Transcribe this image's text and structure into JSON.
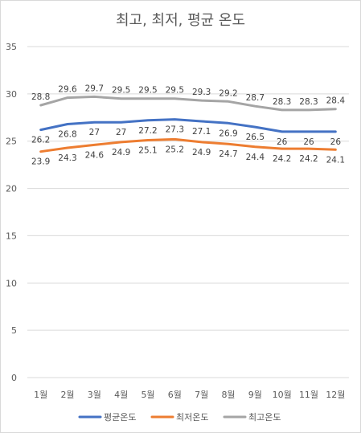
{
  "chart_data": {
    "type": "line",
    "title": "최고, 최저, 평균 온도",
    "categories": [
      "1월",
      "2월",
      "3월",
      "4월",
      "5월",
      "6월",
      "7월",
      "8월",
      "9월",
      "10월",
      "11월",
      "12월"
    ],
    "ylim": [
      0,
      35
    ],
    "yticks": [
      0,
      5,
      10,
      15,
      20,
      25,
      30,
      35
    ],
    "grid": true,
    "legend_position": "bottom",
    "series": [
      {
        "name": "평균온도",
        "color": "#4472c4",
        "label_placement": "below",
        "values": [
          26.2,
          26.8,
          27,
          27,
          27.2,
          27.3,
          27.1,
          26.9,
          26.5,
          26,
          26,
          26
        ]
      },
      {
        "name": "최저온도",
        "color": "#ed7d31",
        "label_placement": "below",
        "values": [
          23.9,
          24.3,
          24.6,
          24.9,
          25.1,
          25.2,
          24.9,
          24.7,
          24.4,
          24.2,
          24.2,
          24.1
        ]
      },
      {
        "name": "최고온도",
        "color": "#a5a5a5",
        "label_placement": "above",
        "values": [
          28.8,
          29.6,
          29.7,
          29.5,
          29.5,
          29.5,
          29.3,
          29.2,
          28.7,
          28.3,
          28.3,
          28.4
        ]
      }
    ]
  }
}
